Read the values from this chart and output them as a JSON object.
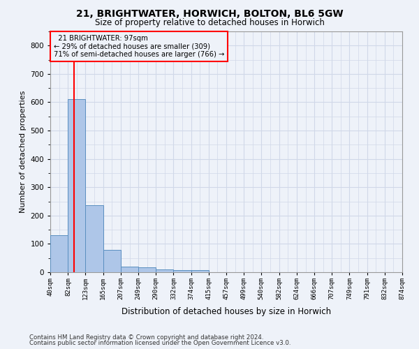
{
  "title_line1": "21, BRIGHTWATER, HORWICH, BOLTON, BL6 5GW",
  "title_line2": "Size of property relative to detached houses in Horwich",
  "xlabel": "Distribution of detached houses by size in Horwich",
  "ylabel": "Number of detached properties",
  "footnote1": "Contains HM Land Registry data © Crown copyright and database right 2024.",
  "footnote2": "Contains public sector information licensed under the Open Government Licence v3.0.",
  "annotation_title": "21 BRIGHTWATER: 97sqm",
  "annotation_line2": "← 29% of detached houses are smaller (309)",
  "annotation_line3": "71% of semi-detached houses are larger (766) →",
  "property_size_sqm": 97,
  "bin_edges": [
    40,
    82,
    123,
    165,
    207,
    249,
    290,
    332,
    374,
    415,
    457,
    499,
    540,
    582,
    624,
    666,
    707,
    749,
    791,
    832,
    874
  ],
  "bar_heights": [
    130,
    610,
    237,
    80,
    20,
    18,
    10,
    7,
    8,
    0,
    0,
    0,
    0,
    0,
    0,
    0,
    0,
    0,
    0,
    0
  ],
  "bar_color": "#aec6e8",
  "bar_edge_color": "#5a8fc0",
  "grid_color": "#d0d8e8",
  "annotation_box_color": "#ff0000",
  "vline_color": "#ff0000",
  "background_color": "#eef2f9",
  "ylim_max": 850,
  "xlim_left": 40,
  "xlim_right": 874,
  "yticks": [
    0,
    100,
    200,
    300,
    400,
    500,
    600,
    700,
    800
  ]
}
